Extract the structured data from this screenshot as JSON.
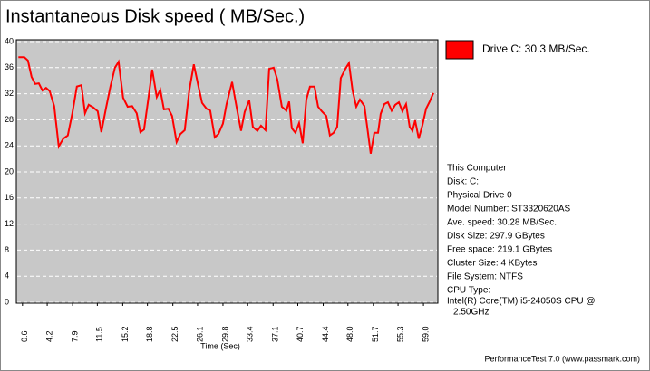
{
  "chart_data": {
    "type": "line",
    "title": "Instantaneous Disk speed ( MB/Sec.)",
    "xlabel": "Time (Sec)",
    "x": [
      0,
      0.86,
      1.39,
      1.92,
      2.44,
      2.97,
      3.5,
      4.03,
      4.56,
      5.22,
      5.88,
      6.54,
      7.2,
      7.86,
      8.52,
      9.18,
      9.71,
      10.24,
      10.9,
      11.56,
      12.09,
      12.75,
      13.41,
      14.07,
      14.6,
      15.26,
      15.92,
      16.58,
      17.24,
      17.77,
      18.3,
      18.96,
      19.49,
      20.15,
      20.67,
      21.2,
      21.86,
      22.39,
      23.05,
      23.58,
      24.24,
      24.9,
      25.56,
      26.22,
      26.75,
      27.41,
      27.94,
      28.6,
      29.13,
      29.79,
      30.32,
      31.12,
      31.77,
      32.43,
      32.96,
      33.62,
      34.15,
      34.81,
      35.34,
      36.0,
      36.53,
      37.19,
      37.72,
      38.38,
      39.04,
      39.43,
      39.83,
      40.36,
      40.89,
      41.41,
      41.94,
      42.47,
      43.13,
      43.66,
      44.19,
      44.85,
      45.38,
      45.91,
      46.43,
      46.96,
      47.62,
      48.15,
      48.68,
      49.21,
      49.74,
      50.4,
      50.92,
      51.32,
      51.85,
      52.38,
      52.77,
      53.3,
      53.83,
      54.36,
      54.89,
      55.42,
      55.94,
      56.47,
      57.0,
      57.4,
      57.79,
      58.32,
      58.85,
      59.38,
      59.91,
      60.44
    ],
    "series": [
      {
        "name": "Drive C: 30.3 MB/Sec.",
        "color": "#ff0000",
        "values": [
          37.6,
          37.6,
          37.1,
          34.6,
          33.5,
          33.6,
          32.5,
          32.9,
          32.4,
          30.1,
          23.9,
          25.1,
          25.6,
          29.0,
          33.1,
          33.3,
          29.0,
          30.3,
          29.9,
          29.3,
          26.1,
          29.7,
          33.1,
          36.0,
          36.9,
          31.4,
          30.0,
          30.1,
          29.0,
          26.1,
          26.5,
          31.5,
          35.7,
          31.5,
          32.6,
          29.6,
          29.7,
          28.6,
          24.6,
          25.8,
          26.4,
          32.5,
          36.5,
          33.2,
          30.6,
          29.7,
          29.4,
          25.3,
          25.8,
          27.4,
          30.4,
          33.8,
          30.0,
          26.3,
          29.2,
          31.0,
          26.9,
          26.3,
          27.1,
          26.4,
          35.8,
          36.0,
          34.2,
          30.0,
          29.4,
          30.8,
          26.7,
          26.0,
          27.5,
          24.4,
          31.1,
          33.1,
          33.1,
          30.0,
          29.3,
          28.6,
          25.6,
          26.0,
          26.9,
          34.4,
          35.8,
          36.7,
          32.5,
          30.0,
          31.1,
          30.1,
          26.0,
          22.8,
          26.0,
          26.0,
          28.9,
          30.4,
          30.7,
          29.4,
          30.3,
          30.7,
          29.3,
          30.4,
          26.9,
          26.3,
          27.9,
          25.1,
          27.2,
          29.7,
          30.8,
          32.1
        ]
      }
    ],
    "xlim": [
      -0.3,
      61.1
    ],
    "ylim": [
      0,
      40
    ],
    "xticks": [
      0.6,
      4.2,
      7.9,
      11.5,
      15.2,
      18.8,
      22.5,
      26.1,
      29.8,
      33.4,
      37.1,
      40.7,
      44.4,
      {
        "value": 48,
        "label": "48.0"
      },
      51.7,
      55.3,
      {
        "value": 59,
        "label": "59.0"
      }
    ],
    "yticks": [
      0,
      4,
      8,
      12,
      16,
      20,
      24,
      28,
      32,
      36,
      40
    ],
    "grid": true
  },
  "panel": {
    "lines": [
      "This Computer",
      "Disk: C:",
      "Physical Drive 0",
      "Model Number: ST3320620AS",
      "Ave. speed: 30.28 MB/Sec.",
      "Disk Size: 297.9 GBytes",
      "Free space: 219.1 GBytes",
      "Cluster Size: 4 KBytes",
      "File System: NTFS",
      "CPU Type:",
      "Intel(R) Core(TM) i5-24050S CPU @",
      "2.50GHz"
    ]
  },
  "footer": "PerformanceTest 7.0 (www.passmark.com)"
}
